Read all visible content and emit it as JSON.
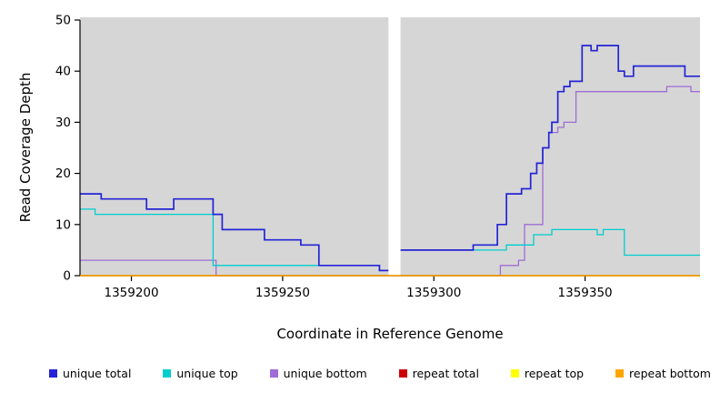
{
  "chart_data": {
    "type": "line",
    "subtype": "step",
    "title": "",
    "xlabel": "Coordinate in Reference Genome",
    "ylabel": "Read Coverage Depth",
    "xlim": [
      1359183,
      1359388
    ],
    "ylim": [
      0,
      50
    ],
    "xticks": [
      1359200,
      1359250,
      1359300,
      1359350
    ],
    "yticks": [
      0,
      10,
      20,
      30,
      40,
      50
    ],
    "grid": false,
    "plot_bg": "#d6d6d6",
    "gap_region": [
      1359285,
      1359289
    ],
    "legend_position": "bottom",
    "series": [
      {
        "name": "unique total",
        "color": "#2424d6",
        "lw": 1.7,
        "points": [
          [
            1359183,
            16
          ],
          [
            1359190,
            15
          ],
          [
            1359205,
            13
          ],
          [
            1359214,
            15
          ],
          [
            1359227,
            12
          ],
          [
            1359230,
            9
          ],
          [
            1359244,
            7
          ],
          [
            1359256,
            6
          ],
          [
            1359262,
            2
          ],
          [
            1359282,
            1
          ],
          [
            1359287,
            5
          ],
          [
            1359313,
            6
          ],
          [
            1359321,
            10
          ],
          [
            1359324,
            16
          ],
          [
            1359329,
            17
          ],
          [
            1359332,
            20
          ],
          [
            1359334,
            22
          ],
          [
            1359336,
            25
          ],
          [
            1359338,
            28
          ],
          [
            1359339,
            30
          ],
          [
            1359341,
            36
          ],
          [
            1359343,
            37
          ],
          [
            1359345,
            38
          ],
          [
            1359349,
            45
          ],
          [
            1359352,
            44
          ],
          [
            1359354,
            45
          ],
          [
            1359361,
            40
          ],
          [
            1359363,
            39
          ],
          [
            1359366,
            41
          ],
          [
            1359383,
            39
          ]
        ]
      },
      {
        "name": "unique top",
        "color": "#00CDCD",
        "lw": 1.3,
        "points": [
          [
            1359183,
            13
          ],
          [
            1359188,
            12
          ],
          [
            1359227,
            2
          ],
          [
            1359282,
            1
          ],
          [
            1359287,
            5
          ],
          [
            1359324,
            6
          ],
          [
            1359333,
            8
          ],
          [
            1359339,
            9
          ],
          [
            1359354,
            8
          ],
          [
            1359356,
            9
          ],
          [
            1359363,
            4
          ]
        ]
      },
      {
        "name": "unique bottom",
        "color": "#A06CD5",
        "lw": 1.3,
        "points": [
          [
            1359183,
            3
          ],
          [
            1359228,
            0
          ],
          [
            1359322,
            2
          ],
          [
            1359328,
            3
          ],
          [
            1359330,
            10
          ],
          [
            1359334,
            10
          ],
          [
            1359336,
            25
          ],
          [
            1359338,
            28
          ],
          [
            1359341,
            29
          ],
          [
            1359343,
            30
          ],
          [
            1359347,
            36
          ],
          [
            1359377,
            37
          ],
          [
            1359385,
            36
          ]
        ]
      },
      {
        "name": "repeat total",
        "color": "#CD0000",
        "lw": 1.3,
        "points": [
          [
            1359183,
            0
          ]
        ]
      },
      {
        "name": "repeat top",
        "color": "#FFFF00",
        "lw": 1.3,
        "points": [
          [
            1359183,
            0
          ]
        ]
      },
      {
        "name": "repeat bottom",
        "color": "#FFA500",
        "lw": 1.6,
        "points": [
          [
            1359183,
            0
          ]
        ]
      }
    ],
    "draw_order": [
      3,
      4,
      2,
      1,
      0
    ],
    "draw_after_gap": [
      5
    ]
  }
}
